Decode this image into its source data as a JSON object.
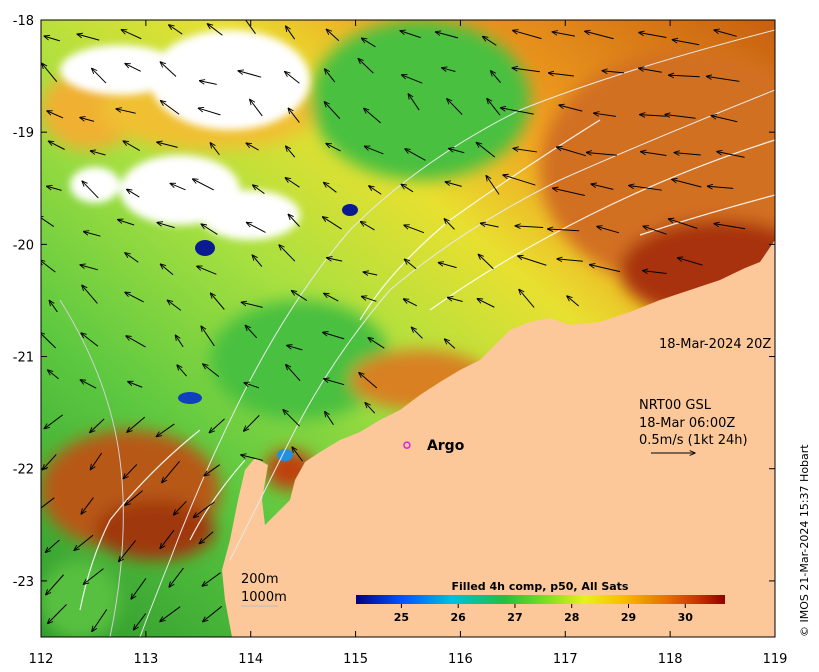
{
  "map": {
    "lon_ticks": [
      "112",
      "113",
      "114",
      "115",
      "116",
      "117",
      "118",
      "119"
    ],
    "lat_ticks": [
      "-18",
      "-19",
      "-20",
      "-21",
      "-22",
      "-23"
    ],
    "lon_range": [
      112,
      119
    ],
    "lat_range": [
      -23.5,
      -18
    ],
    "date_label": "18-Mar-2024 20Z",
    "current_info": {
      "line1": "NRT00 GSL",
      "line2": "18-Mar 06:00Z",
      "line3": "0.5m/s (1kt 24h)"
    },
    "argo_label": "Argo",
    "argo_position": {
      "lon": 115.49,
      "lat": -21.79
    },
    "depth_legend": [
      "200m",
      "1000m"
    ],
    "colorbar": {
      "title": "Filled 4h comp, p50, All Sats",
      "ticks": [
        "25",
        "26",
        "27",
        "28",
        "29",
        "30"
      ],
      "range": [
        24.2,
        30.7
      ]
    },
    "credit": "© IMOS 21-Mar-2024 15:37 Hobart",
    "colors": {
      "land": "#fcc89a",
      "argo_marker": "#e020e0"
    }
  }
}
